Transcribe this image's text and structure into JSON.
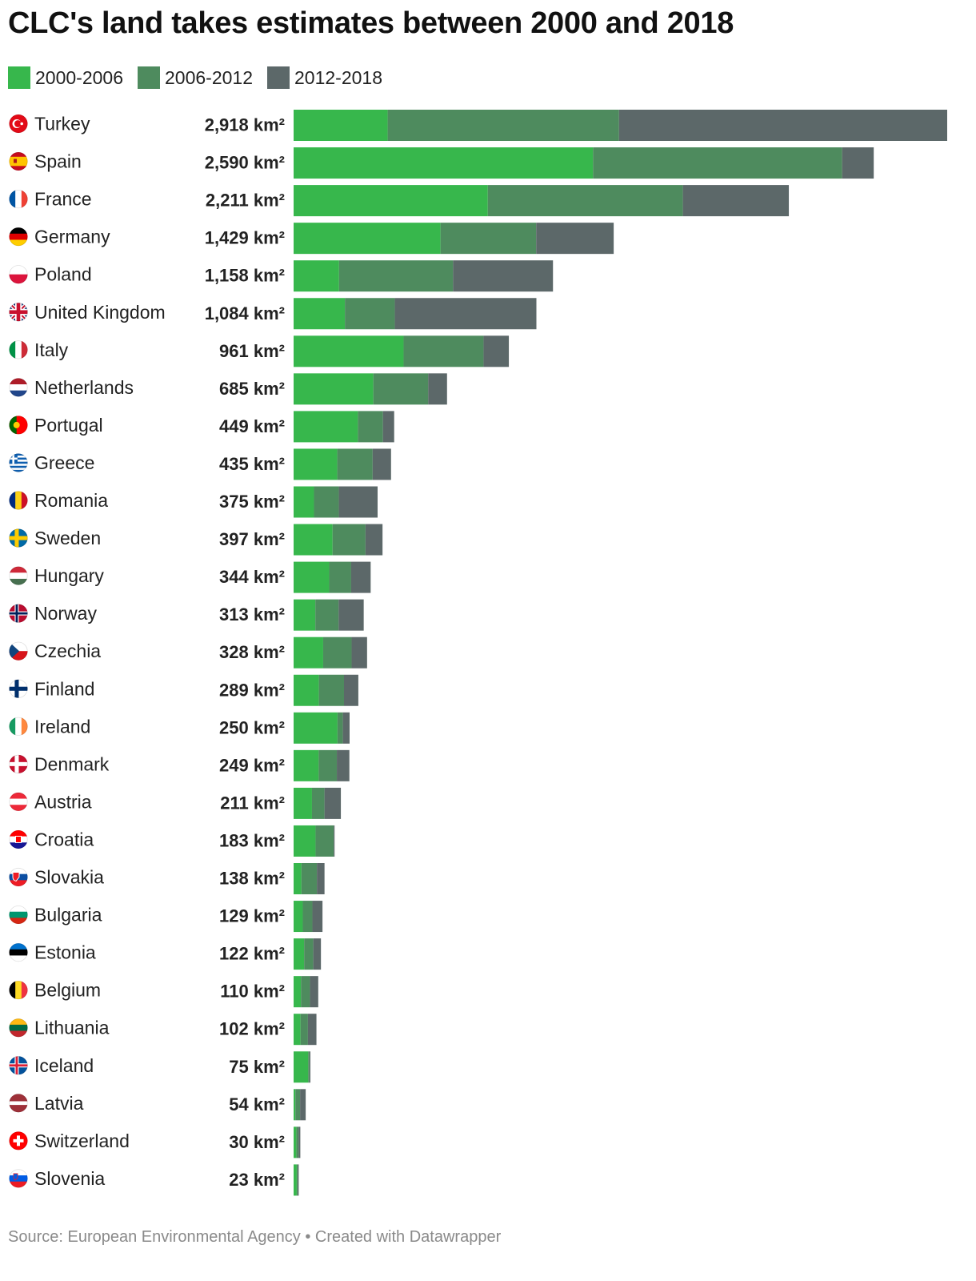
{
  "title": "CLC's land takes estimates between 2000 and 2018",
  "footer": {
    "source": "Source: European Environmental Agency",
    "separator": " • ",
    "credit": "Created with Datawrapper"
  },
  "colors": {
    "2000-2006": "#37b74c",
    "2006-2012": "#4e8b5e",
    "2012-2018": "#5c6869"
  },
  "chart_data": {
    "type": "bar",
    "orientation": "horizontal",
    "stacked": true,
    "unit": "km²",
    "legend_position": "top-left",
    "xlim": [
      0,
      2918
    ],
    "categories": [
      "Turkey",
      "Spain",
      "France",
      "Germany",
      "Poland",
      "United Kingdom",
      "Italy",
      "Netherlands",
      "Portugal",
      "Greece",
      "Romania",
      "Sweden",
      "Hungary",
      "Norway",
      "Czechia",
      "Finland",
      "Ireland",
      "Denmark",
      "Austria",
      "Croatia",
      "Slovakia",
      "Bulgaria",
      "Estonia",
      "Belgium",
      "Lithuania",
      "Iceland",
      "Latvia",
      "Switzerland",
      "Slovenia"
    ],
    "totals": [
      "2,918 km²",
      "2,590 km²",
      "2,211 km²",
      "1,429 km²",
      "1,158 km²",
      "1,084 km²",
      "961 km²",
      "685 km²",
      "449 km²",
      "435 km²",
      "375 km²",
      "397 km²",
      "344 km²",
      "313 km²",
      "328 km²",
      "289 km²",
      "250 km²",
      "249 km²",
      "211 km²",
      "183 km²",
      "138 km²",
      "129 km²",
      "122 km²",
      "110 km²",
      "102 km²",
      "75 km²",
      "54 km²",
      "30 km²",
      "23 km²"
    ],
    "flags": [
      "turkey-flag-icon",
      "spain-flag-icon",
      "france-flag-icon",
      "germany-flag-icon",
      "poland-flag-icon",
      "united-kingdom-flag-icon",
      "italy-flag-icon",
      "netherlands-flag-icon",
      "portugal-flag-icon",
      "greece-flag-icon",
      "romania-flag-icon",
      "sweden-flag-icon",
      "hungary-flag-icon",
      "norway-flag-icon",
      "czechia-flag-icon",
      "finland-flag-icon",
      "ireland-flag-icon",
      "denmark-flag-icon",
      "austria-flag-icon",
      "croatia-flag-icon",
      "slovakia-flag-icon",
      "bulgaria-flag-icon",
      "estonia-flag-icon",
      "belgium-flag-icon",
      "lithuania-flag-icon",
      "iceland-flag-icon",
      "latvia-flag-icon",
      "switzerland-flag-icon",
      "slovenia-flag-icon"
    ],
    "series": [
      {
        "name": "2000-2006",
        "values": [
          420,
          1337,
          867,
          656,
          203,
          229,
          491,
          356,
          287,
          195,
          91,
          174,
          159,
          97,
          132,
          113,
          196,
          112,
          82,
          98,
          35,
          41,
          47,
          33,
          31,
          65,
          8,
          12,
          14
        ]
      },
      {
        "name": "2006-2012",
        "values": [
          1033,
          1112,
          871,
          427,
          509,
          223,
          357,
          245,
          112,
          158,
          111,
          147,
          98,
          104,
          127,
          112,
          24,
          81,
          56,
          81,
          69,
          43,
          41,
          40,
          33,
          6,
          21,
          10,
          5
        ]
      },
      {
        "name": "2012-2018",
        "values": [
          1465,
          141,
          473,
          346,
          446,
          632,
          113,
          84,
          50,
          82,
          173,
          76,
          87,
          112,
          69,
          64,
          30,
          56,
          73,
          4,
          34,
          45,
          34,
          37,
          38,
          4,
          25,
          8,
          4
        ]
      }
    ]
  }
}
